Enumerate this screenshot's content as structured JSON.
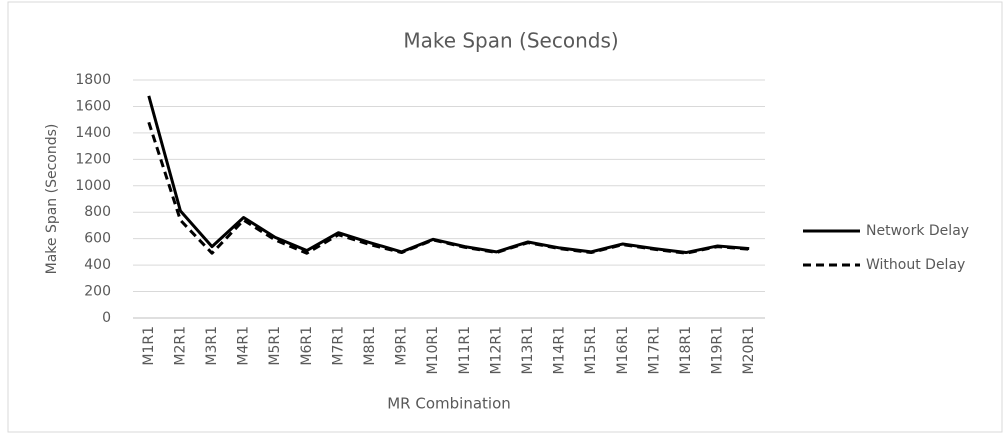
{
  "chart_data": {
    "type": "line",
    "title": "Make Span (Seconds)",
    "x_label": "MR Combination",
    "y_label": "Make Span (Seconds)",
    "categories": [
      "M1R1",
      "M2R1",
      "M3R1",
      "M4R1",
      "M5R1",
      "M6R1",
      "M7R1",
      "M8R1",
      "M9R1",
      "M10R1",
      "M11R1",
      "M12R1",
      "M13R1",
      "M14R1",
      "M15R1",
      "M16R1",
      "M17R1",
      "M18R1",
      "M19R1",
      "M20R1"
    ],
    "series": [
      {
        "name": "Network Delay",
        "color": "#000000",
        "line_style": "solid",
        "values": [
          1680,
          810,
          540,
          760,
          610,
          510,
          645,
          570,
          500,
          595,
          540,
          500,
          575,
          530,
          500,
          560,
          525,
          495,
          545,
          525
        ]
      },
      {
        "name": "Without Delay",
        "color": "#000000",
        "line_style": "dashed",
        "values": [
          1480,
          740,
          490,
          740,
          590,
          490,
          630,
          555,
          495,
          590,
          535,
          495,
          570,
          525,
          495,
          555,
          520,
          490,
          540,
          520
        ]
      }
    ],
    "ylim": [
      0,
      1800
    ],
    "yticks": [
      0,
      200,
      400,
      600,
      800,
      1000,
      1200,
      1400,
      1600,
      1800
    ],
    "grid": true,
    "legend": "right"
  }
}
